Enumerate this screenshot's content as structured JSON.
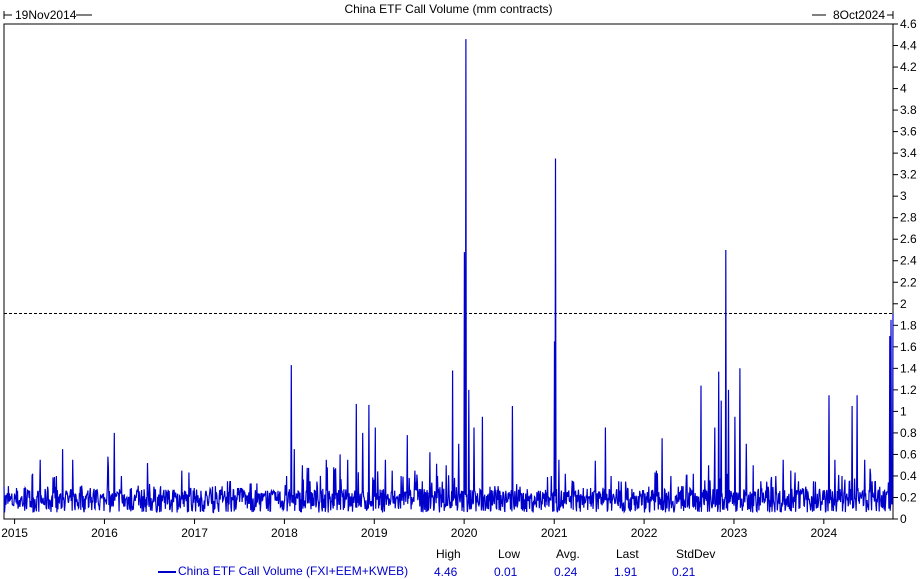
{
  "chart_data": {
    "type": "line",
    "title": "China ETF Call Volume (mm contracts)",
    "start_label": "19Nov2014",
    "end_label": "8Oct2024",
    "x_range": [
      "2014-11-19",
      "2024-10-08"
    ],
    "x_tick_labels": [
      "2015",
      "2016",
      "2017",
      "2018",
      "2019",
      "2020",
      "2021",
      "2022",
      "2023",
      "2024"
    ],
    "ylim": [
      0,
      4.6
    ],
    "y_tick_labels": [
      "0",
      "0.2",
      "0.4",
      "0.6",
      "0.8",
      "1",
      "1.2",
      "1.4",
      "1.6",
      "1.8",
      "2",
      "2.2",
      "2.4",
      "2.6",
      "2.8",
      "3",
      "3.2",
      "3.4",
      "3.6",
      "3.8",
      "4",
      "4.2",
      "4.4",
      "4.6"
    ],
    "reference_line": 1.91,
    "series": [
      {
        "name": "China ETF Call Volume (FXI+EEM+KWEB)",
        "color": "#0000cc",
        "points": [
          [
            "2014-11-19",
            0.3
          ],
          [
            "2014-12-15",
            0.18
          ],
          [
            "2015-01-05",
            0.22
          ],
          [
            "2015-02-15",
            0.28
          ],
          [
            "2015-03-15",
            0.42
          ],
          [
            "2015-04-15",
            0.55
          ],
          [
            "2015-05-15",
            0.3
          ],
          [
            "2015-06-20",
            0.4
          ],
          [
            "2015-07-15",
            0.65
          ],
          [
            "2015-08-25",
            0.55
          ],
          [
            "2015-09-25",
            0.3
          ],
          [
            "2015-10-20",
            0.22
          ],
          [
            "2015-11-20",
            0.28
          ],
          [
            "2015-12-20",
            0.2
          ],
          [
            "2016-01-15",
            0.58
          ],
          [
            "2016-02-10",
            0.8
          ],
          [
            "2016-03-10",
            0.4
          ],
          [
            "2016-04-15",
            0.28
          ],
          [
            "2016-05-15",
            0.25
          ],
          [
            "2016-06-24",
            0.52
          ],
          [
            "2016-07-20",
            0.3
          ],
          [
            "2016-08-20",
            0.22
          ],
          [
            "2016-09-20",
            0.26
          ],
          [
            "2016-10-20",
            0.2
          ],
          [
            "2016-11-10",
            0.45
          ],
          [
            "2016-12-15",
            0.28
          ],
          [
            "2017-01-15",
            0.22
          ],
          [
            "2017-02-15",
            0.25
          ],
          [
            "2017-03-15",
            0.3
          ],
          [
            "2017-04-15",
            0.18
          ],
          [
            "2017-05-15",
            0.35
          ],
          [
            "2017-06-15",
            0.22
          ],
          [
            "2017-07-15",
            0.28
          ],
          [
            "2017-08-15",
            0.33
          ],
          [
            "2017-09-15",
            0.2
          ],
          [
            "2017-10-15",
            0.22
          ],
          [
            "2017-11-15",
            0.25
          ],
          [
            "2017-12-10",
            0.18
          ],
          [
            "2018-01-10",
            0.4
          ],
          [
            "2018-01-29",
            1.43
          ],
          [
            "2018-02-10",
            0.65
          ],
          [
            "2018-03-15",
            0.5
          ],
          [
            "2018-04-15",
            0.35
          ],
          [
            "2018-05-15",
            0.3
          ],
          [
            "2018-06-20",
            0.55
          ],
          [
            "2018-07-20",
            0.48
          ],
          [
            "2018-08-15",
            0.6
          ],
          [
            "2018-09-15",
            0.55
          ],
          [
            "2018-10-20",
            1.07
          ],
          [
            "2018-11-15",
            0.8
          ],
          [
            "2018-12-10",
            1.06
          ],
          [
            "2019-01-05",
            0.85
          ],
          [
            "2019-02-15",
            0.55
          ],
          [
            "2019-03-15",
            0.45
          ],
          [
            "2019-04-20",
            0.4
          ],
          [
            "2019-05-15",
            0.78
          ],
          [
            "2019-06-15",
            0.45
          ],
          [
            "2019-07-15",
            0.35
          ],
          [
            "2019-08-15",
            0.62
          ],
          [
            "2019-09-15",
            0.4
          ],
          [
            "2019-10-20",
            0.5
          ],
          [
            "2019-11-15",
            1.38
          ],
          [
            "2019-12-10",
            0.7
          ],
          [
            "2020-01-02",
            2.48
          ],
          [
            "2020-01-08",
            4.46
          ],
          [
            "2020-01-20",
            1.2
          ],
          [
            "2020-02-10",
            0.85
          ],
          [
            "2020-03-15",
            0.95
          ],
          [
            "2020-04-15",
            0.3
          ],
          [
            "2020-05-20",
            0.25
          ],
          [
            "2020-06-20",
            0.22
          ],
          [
            "2020-07-15",
            1.05
          ],
          [
            "2020-08-15",
            0.3
          ],
          [
            "2020-09-15",
            0.22
          ],
          [
            "2020-10-15",
            0.2
          ],
          [
            "2020-11-15",
            0.25
          ],
          [
            "2020-12-20",
            0.4
          ],
          [
            "2021-01-02",
            1.65
          ],
          [
            "2021-01-06",
            3.35
          ],
          [
            "2021-01-20",
            0.55
          ],
          [
            "2021-02-15",
            0.42
          ],
          [
            "2021-03-15",
            0.35
          ],
          [
            "2021-04-15",
            0.22
          ],
          [
            "2021-05-15",
            0.28
          ],
          [
            "2021-06-15",
            0.25
          ],
          [
            "2021-07-28",
            0.85
          ],
          [
            "2021-08-20",
            0.4
          ],
          [
            "2021-09-20",
            0.35
          ],
          [
            "2021-10-20",
            0.28
          ],
          [
            "2021-11-20",
            0.25
          ],
          [
            "2021-12-20",
            0.22
          ],
          [
            "2022-01-20",
            0.3
          ],
          [
            "2022-02-20",
            0.45
          ],
          [
            "2022-03-15",
            0.75
          ],
          [
            "2022-04-20",
            0.4
          ],
          [
            "2022-05-20",
            0.3
          ],
          [
            "2022-06-20",
            0.3
          ],
          [
            "2022-07-20",
            0.42
          ],
          [
            "2022-08-20",
            1.24
          ],
          [
            "2022-09-20",
            0.5
          ],
          [
            "2022-10-15",
            0.85
          ],
          [
            "2022-10-31",
            1.37
          ],
          [
            "2022-11-10",
            1.1
          ],
          [
            "2022-11-29",
            2.5
          ],
          [
            "2022-12-10",
            1.2
          ],
          [
            "2023-01-05",
            0.95
          ],
          [
            "2023-01-25",
            1.4
          ],
          [
            "2023-02-20",
            0.7
          ],
          [
            "2023-03-20",
            0.5
          ],
          [
            "2023-04-20",
            0.35
          ],
          [
            "2023-05-20",
            0.3
          ],
          [
            "2023-06-20",
            0.4
          ],
          [
            "2023-07-20",
            0.55
          ],
          [
            "2023-08-20",
            0.45
          ],
          [
            "2023-09-20",
            0.35
          ],
          [
            "2023-10-20",
            0.3
          ],
          [
            "2023-11-20",
            0.35
          ],
          [
            "2023-12-15",
            0.28
          ],
          [
            "2024-01-22",
            1.15
          ],
          [
            "2024-02-15",
            0.55
          ],
          [
            "2024-03-15",
            0.4
          ],
          [
            "2024-04-15",
            0.35
          ],
          [
            "2024-04-25",
            1.05
          ],
          [
            "2024-05-15",
            1.15
          ],
          [
            "2024-06-15",
            0.55
          ],
          [
            "2024-07-15",
            0.35
          ],
          [
            "2024-08-15",
            0.3
          ],
          [
            "2024-09-10",
            0.25
          ],
          [
            "2024-09-25",
            1.7
          ],
          [
            "2024-09-30",
            1.85
          ],
          [
            "2024-10-08",
            1.91
          ]
        ]
      }
    ],
    "legend": {
      "stats_headers": [
        "High",
        "Low",
        "Avg.",
        "Last",
        "StdDev"
      ],
      "stats_values": [
        "4.46",
        "0.01",
        "0.24",
        "1.91",
        "0.21"
      ]
    },
    "grid": false
  }
}
